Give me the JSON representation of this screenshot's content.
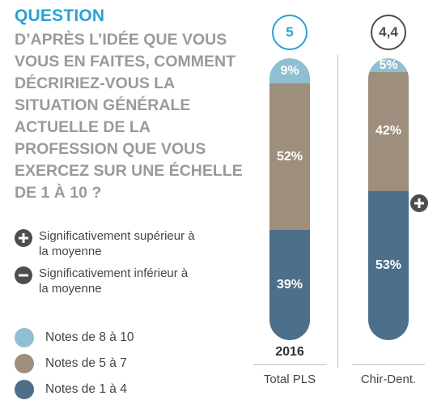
{
  "question": {
    "label": "QUESTION",
    "text": "D’APRÈS L’IDÉE QUE VOUS VOUS EN FAITES, COMMENT DÉCRIRIEZ-VOUS LA SITUATION GÉNÉRALE ACTUELLE DE LA PROFESSION QUE VOUS EXERCEZ SUR UNE ÉCHELLE DE 1 À 10 ?"
  },
  "significance_legend": [
    {
      "icon": "plus-circle-icon",
      "text": "Significativement supérieur à la moyenne"
    },
    {
      "icon": "minus-circle-icon",
      "text": "Significativement inférieur à la moyenne"
    }
  ],
  "colors": {
    "accent": "#2aa1d5",
    "high": "#8fbfd0",
    "mid": "#9e8e7e",
    "low": "#4d6f8a",
    "question_gray": "#9a9a9a",
    "icon_dark": "#4d4d4d"
  },
  "chart_data": {
    "type": "bar",
    "stacked": true,
    "orientation": "vertical",
    "title": "D’APRÈS L’IDÉE QUE VOUS VOUS EN FAITES, COMMENT DÉCRIRIEZ-VOUS LA SITUATION GÉNÉRALE ACTUELLE DE LA PROFESSION QUE VOUS EXERCEZ SUR UNE ÉCHELLE DE 1 À 10 ?",
    "categories": [
      "Total PLS",
      "Chir-Dent."
    ],
    "category_subtitles": [
      "2016",
      ""
    ],
    "averages": [
      "5",
      "4,4"
    ],
    "series": [
      {
        "name": "Notes de 8 à 10",
        "color": "#8fbfd0",
        "values": [
          9,
          5
        ],
        "labels": [
          "9%",
          "5%"
        ]
      },
      {
        "name": "Notes de 5 à 7",
        "color": "#9e8e7e",
        "values": [
          52,
          42
        ],
        "labels": [
          "52%",
          "42%"
        ]
      },
      {
        "name": "Notes de 1 à 4",
        "color": "#4d6f8a",
        "values": [
          39,
          53
        ],
        "labels": [
          "39%",
          "53%"
        ]
      }
    ],
    "significance_marks": [
      {
        "category": "Chir-Dent.",
        "series": "Notes de 1 à 4",
        "type": "plus"
      }
    ],
    "ylim": [
      0,
      100
    ],
    "legend_position": "bottom-left"
  }
}
